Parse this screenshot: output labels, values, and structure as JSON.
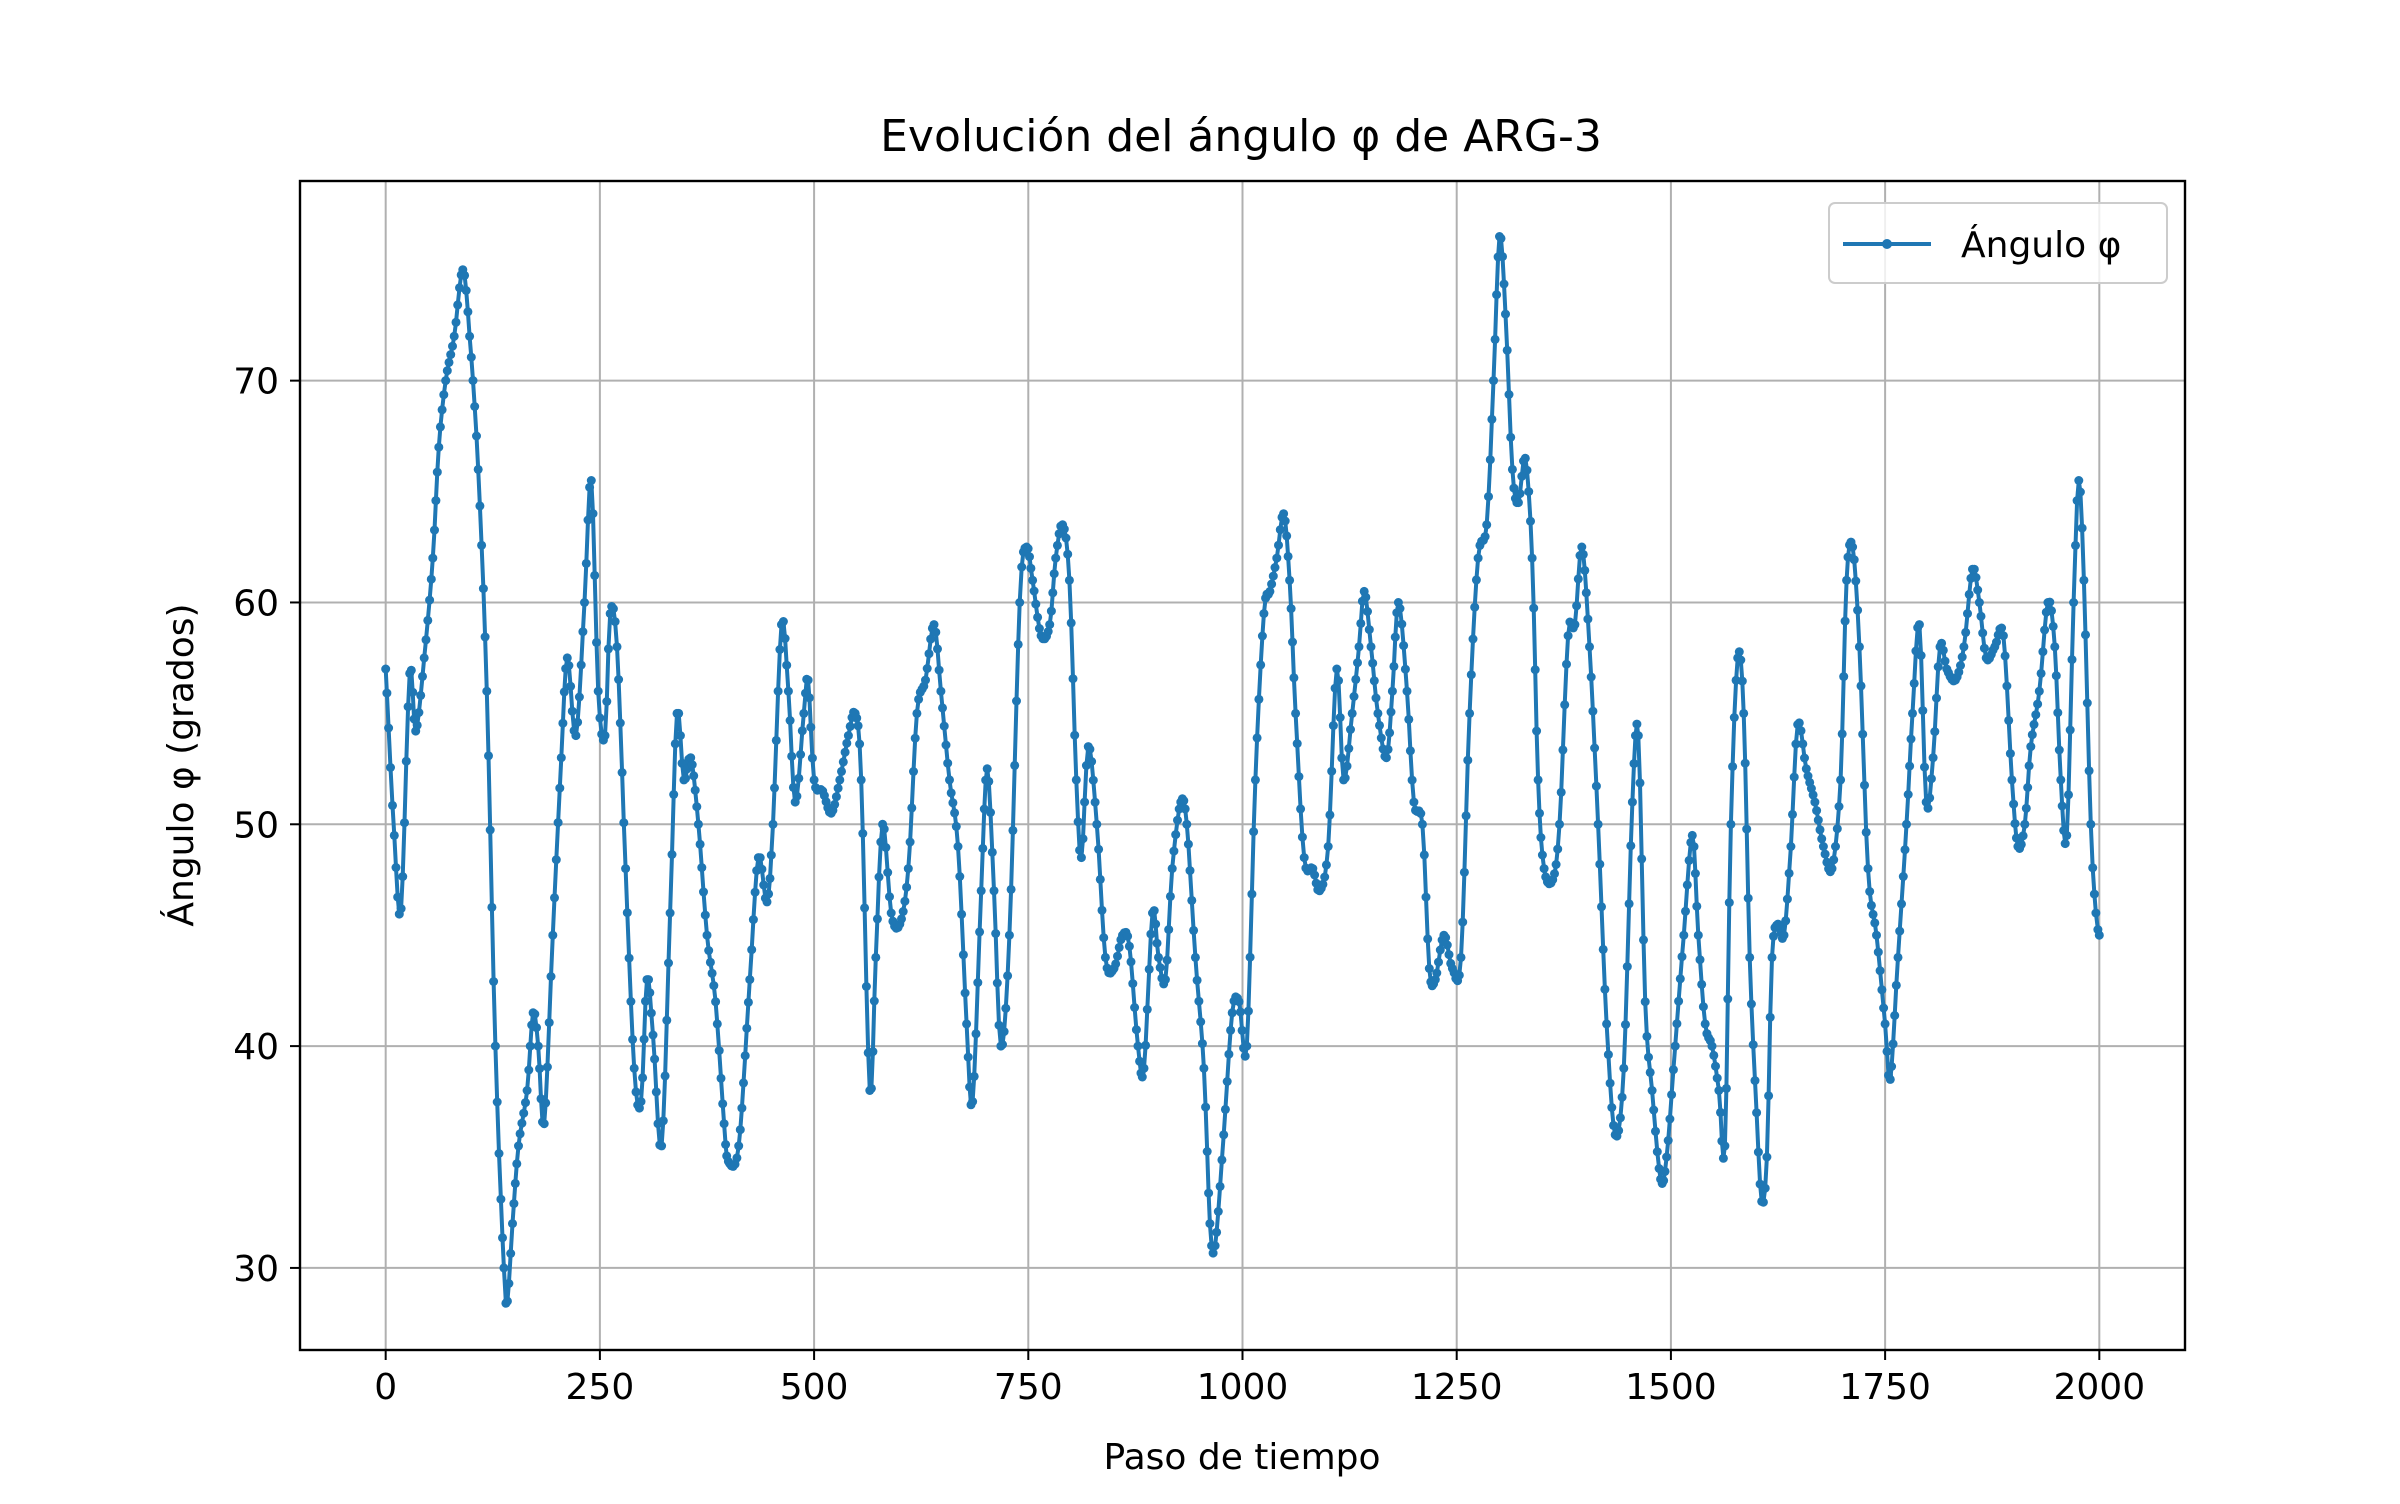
{
  "chart_data": {
    "type": "line",
    "title": "Evolución del ángulo φ de ARG-3",
    "xlabel": "Paso de tiempo",
    "ylabel": "Ángulo φ (grados)",
    "xlim": [
      -100,
      2100
    ],
    "ylim": [
      26.3,
      79.0
    ],
    "xticks": [
      0,
      250,
      500,
      750,
      1000,
      1250,
      1500,
      1750,
      2000
    ],
    "yticks": [
      30,
      40,
      50,
      60,
      70
    ],
    "grid": true,
    "legend_position": "top-right",
    "color": "#1f77b4",
    "series": [
      {
        "name": "Ángulo φ",
        "points": [
          [
            0,
            57.0
          ],
          [
            10,
            49.5
          ],
          [
            18,
            46.2
          ],
          [
            28,
            56.8
          ],
          [
            35,
            54.2
          ],
          [
            45,
            57.5
          ],
          [
            55,
            62.0
          ],
          [
            62,
            67.0
          ],
          [
            70,
            70.0
          ],
          [
            80,
            72.0
          ],
          [
            90,
            75.0
          ],
          [
            98,
            72.0
          ],
          [
            108,
            66.0
          ],
          [
            118,
            56.0
          ],
          [
            128,
            40.0
          ],
          [
            138,
            30.0
          ],
          [
            142,
            28.5
          ],
          [
            148,
            32.0
          ],
          [
            155,
            35.5
          ],
          [
            165,
            38.0
          ],
          [
            172,
            41.5
          ],
          [
            178,
            40.0
          ],
          [
            185,
            36.5
          ],
          [
            195,
            45.0
          ],
          [
            205,
            53.0
          ],
          [
            212,
            57.5
          ],
          [
            222,
            54.0
          ],
          [
            232,
            60.0
          ],
          [
            240,
            65.5
          ],
          [
            248,
            56.0
          ],
          [
            256,
            54.0
          ],
          [
            262,
            59.5
          ],
          [
            270,
            58.0
          ],
          [
            280,
            48.0
          ],
          [
            290,
            39.0
          ],
          [
            298,
            37.5
          ],
          [
            305,
            43.0
          ],
          [
            312,
            40.5
          ],
          [
            322,
            35.5
          ],
          [
            332,
            46.0
          ],
          [
            340,
            55.0
          ],
          [
            348,
            52.0
          ],
          [
            356,
            53.0
          ],
          [
            365,
            50.0
          ],
          [
            375,
            45.0
          ],
          [
            385,
            42.0
          ],
          [
            395,
            36.5
          ],
          [
            400,
            34.8
          ],
          [
            412,
            35.5
          ],
          [
            425,
            43.0
          ],
          [
            435,
            48.5
          ],
          [
            445,
            46.5
          ],
          [
            452,
            50.0
          ],
          [
            462,
            59.0
          ],
          [
            470,
            56.0
          ],
          [
            478,
            51.0
          ],
          [
            488,
            55.0
          ],
          [
            493,
            56.5
          ],
          [
            500,
            52.0
          ],
          [
            510,
            51.5
          ],
          [
            520,
            50.5
          ],
          [
            530,
            52.0
          ],
          [
            540,
            54.0
          ],
          [
            548,
            55.0
          ],
          [
            555,
            52.0
          ],
          [
            565,
            38.0
          ],
          [
            572,
            44.0
          ],
          [
            580,
            50.0
          ],
          [
            590,
            46.0
          ],
          [
            600,
            45.5
          ],
          [
            610,
            48.0
          ],
          [
            620,
            55.0
          ],
          [
            630,
            56.5
          ],
          [
            640,
            59.0
          ],
          [
            648,
            56.0
          ],
          [
            658,
            52.0
          ],
          [
            668,
            49.0
          ],
          [
            678,
            41.0
          ],
          [
            685,
            37.5
          ],
          [
            695,
            47.0
          ],
          [
            702,
            52.5
          ],
          [
            710,
            47.0
          ],
          [
            718,
            40.0
          ],
          [
            728,
            45.0
          ],
          [
            740,
            60.0
          ],
          [
            748,
            62.5
          ],
          [
            755,
            61.0
          ],
          [
            765,
            58.5
          ],
          [
            775,
            59.0
          ],
          [
            782,
            62.0
          ],
          [
            790,
            63.5
          ],
          [
            798,
            61.0
          ],
          [
            806,
            52.0
          ],
          [
            812,
            48.5
          ],
          [
            820,
            53.5
          ],
          [
            830,
            50.0
          ],
          [
            840,
            44.0
          ],
          [
            850,
            43.5
          ],
          [
            860,
            45.0
          ],
          [
            868,
            44.5
          ],
          [
            878,
            40.0
          ],
          [
            885,
            39.0
          ],
          [
            895,
            46.0
          ],
          [
            902,
            44.0
          ],
          [
            910,
            43.0
          ],
          [
            918,
            48.0
          ],
          [
            928,
            51.0
          ],
          [
            935,
            50.0
          ],
          [
            945,
            44.0
          ],
          [
            955,
            39.0
          ],
          [
            962,
            32.0
          ],
          [
            968,
            31.0
          ],
          [
            978,
            36.0
          ],
          [
            988,
            41.5
          ],
          [
            996,
            42.0
          ],
          [
            1005,
            40.0
          ],
          [
            1015,
            52.0
          ],
          [
            1025,
            59.5
          ],
          [
            1032,
            60.5
          ],
          [
            1040,
            62.0
          ],
          [
            1048,
            64.0
          ],
          [
            1055,
            61.0
          ],
          [
            1062,
            55.0
          ],
          [
            1072,
            48.5
          ],
          [
            1082,
            48.0
          ],
          [
            1090,
            47.0
          ],
          [
            1100,
            49.0
          ],
          [
            1110,
            57.0
          ],
          [
            1118,
            52.0
          ],
          [
            1128,
            55.0
          ],
          [
            1136,
            58.0
          ],
          [
            1142,
            60.5
          ],
          [
            1150,
            58.0
          ],
          [
            1158,
            55.0
          ],
          [
            1168,
            53.0
          ],
          [
            1175,
            56.0
          ],
          [
            1182,
            60.0
          ],
          [
            1192,
            56.0
          ],
          [
            1200,
            51.0
          ],
          [
            1210,
            50.0
          ],
          [
            1218,
            43.5
          ],
          [
            1225,
            43.0
          ],
          [
            1235,
            45.0
          ],
          [
            1245,
            43.5
          ],
          [
            1255,
            44.0
          ],
          [
            1265,
            55.0
          ],
          [
            1275,
            62.0
          ],
          [
            1285,
            63.5
          ],
          [
            1293,
            70.0
          ],
          [
            1300,
            76.5
          ],
          [
            1307,
            73.0
          ],
          [
            1315,
            66.0
          ],
          [
            1322,
            64.5
          ],
          [
            1330,
            66.5
          ],
          [
            1338,
            62.0
          ],
          [
            1345,
            52.0
          ],
          [
            1352,
            48.0
          ],
          [
            1362,
            47.5
          ],
          [
            1370,
            50.0
          ],
          [
            1380,
            58.5
          ],
          [
            1388,
            59.0
          ],
          [
            1396,
            62.5
          ],
          [
            1405,
            58.0
          ],
          [
            1415,
            50.0
          ],
          [
            1425,
            41.0
          ],
          [
            1435,
            36.0
          ],
          [
            1445,
            39.0
          ],
          [
            1455,
            51.0
          ],
          [
            1462,
            54.0
          ],
          [
            1470,
            42.0
          ],
          [
            1478,
            38.0
          ],
          [
            1488,
            34.0
          ],
          [
            1495,
            35.0
          ],
          [
            1505,
            40.0
          ],
          [
            1515,
            45.0
          ],
          [
            1525,
            49.5
          ],
          [
            1532,
            45.0
          ],
          [
            1540,
            41.0
          ],
          [
            1548,
            40.0
          ],
          [
            1556,
            38.0
          ],
          [
            1563,
            35.5
          ],
          [
            1570,
            50.0
          ],
          [
            1578,
            57.5
          ],
          [
            1585,
            55.0
          ],
          [
            1592,
            44.0
          ],
          [
            1600,
            37.0
          ],
          [
            1606,
            33.0
          ],
          [
            1612,
            35.0
          ],
          [
            1618,
            44.0
          ],
          [
            1625,
            45.5
          ],
          [
            1632,
            45.0
          ],
          [
            1640,
            49.0
          ],
          [
            1648,
            54.5
          ],
          [
            1658,
            52.5
          ],
          [
            1668,
            51.0
          ],
          [
            1678,
            49.0
          ],
          [
            1688,
            48.0
          ],
          [
            1698,
            52.0
          ],
          [
            1705,
            61.0
          ],
          [
            1712,
            62.5
          ],
          [
            1720,
            58.0
          ],
          [
            1730,
            48.0
          ],
          [
            1740,
            45.0
          ],
          [
            1750,
            41.0
          ],
          [
            1756,
            38.5
          ],
          [
            1765,
            44.0
          ],
          [
            1775,
            50.0
          ],
          [
            1782,
            55.0
          ],
          [
            1790,
            59.0
          ],
          [
            1798,
            51.0
          ],
          [
            1806,
            53.0
          ],
          [
            1814,
            58.0
          ],
          [
            1822,
            57.0
          ],
          [
            1832,
            56.5
          ],
          [
            1842,
            58.0
          ],
          [
            1852,
            61.5
          ],
          [
            1860,
            60.0
          ],
          [
            1868,
            57.5
          ],
          [
            1878,
            58.0
          ],
          [
            1888,
            58.5
          ],
          [
            1898,
            52.0
          ],
          [
            1905,
            49.0
          ],
          [
            1913,
            50.0
          ],
          [
            1920,
            53.5
          ],
          [
            1930,
            56.0
          ],
          [
            1940,
            60.0
          ],
          [
            1948,
            58.0
          ],
          [
            1955,
            52.0
          ],
          [
            1962,
            49.5
          ],
          [
            1970,
            60.0
          ],
          [
            1976,
            65.5
          ],
          [
            1982,
            61.0
          ],
          [
            1990,
            50.0
          ],
          [
            1996,
            46.0
          ],
          [
            2000,
            45.0
          ]
        ]
      }
    ]
  }
}
